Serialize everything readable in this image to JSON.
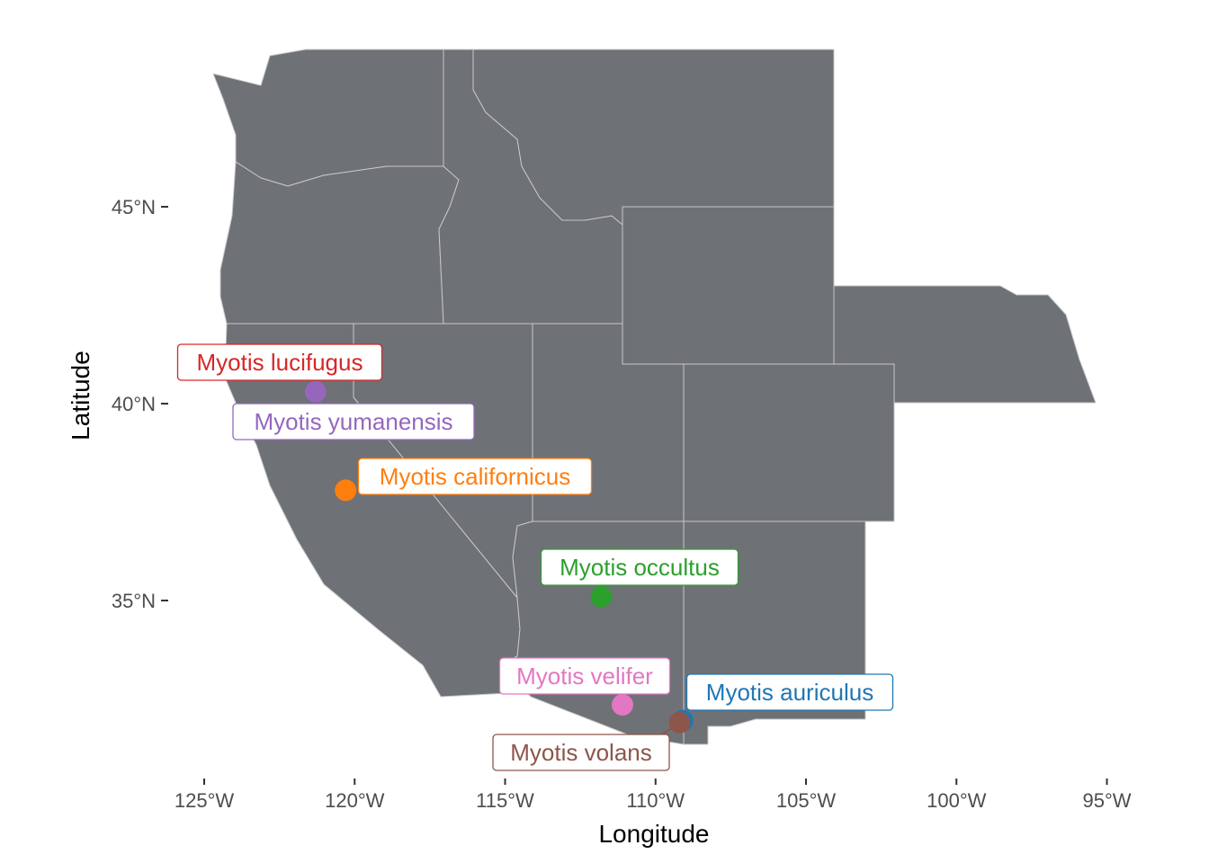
{
  "chart_data": {
    "type": "scatter",
    "title": "",
    "xlabel": "Longitude",
    "ylabel": "Latitude",
    "xlim": [
      -126,
      -94.5
    ],
    "ylim": [
      30.8,
      49
    ],
    "x_ticks": [
      {
        "value": -125,
        "label": "125°W"
      },
      {
        "value": -120,
        "label": "120°W"
      },
      {
        "value": -115,
        "label": "115°W"
      },
      {
        "value": -110,
        "label": "110°W"
      },
      {
        "value": -105,
        "label": "105°W"
      },
      {
        "value": -100,
        "label": "100°W"
      },
      {
        "value": -95,
        "label": "95°W"
      }
    ],
    "y_ticks": [
      {
        "value": 45,
        "label": "45°N"
      },
      {
        "value": 40,
        "label": "40°N"
      },
      {
        "value": 35,
        "label": "35°N"
      }
    ],
    "grid": false,
    "map_fill": "#6e7176",
    "state_border": "#c8c8c8",
    "states": [
      "WA",
      "OR",
      "ID",
      "MT",
      "WY",
      "NE",
      "CA",
      "NV",
      "UT",
      "CO",
      "AZ",
      "NM"
    ],
    "points": [
      {
        "name": "Myotis lucifugus",
        "lon": -121.3,
        "lat": 40.3,
        "color": "#d62728"
      },
      {
        "name": "Myotis yumanensis",
        "lon": -121.3,
        "lat": 40.3,
        "color": "#9467bd"
      },
      {
        "name": "Myotis californicus",
        "lon": -120.3,
        "lat": 37.8,
        "color": "#ff7f0e"
      },
      {
        "name": "Myotis occultus",
        "lon": -111.8,
        "lat": 35.1,
        "color": "#2ca02c"
      },
      {
        "name": "Myotis velifer",
        "lon": -111.1,
        "lat": 32.35,
        "color": "#e377c2"
      },
      {
        "name": "Myotis auriculus",
        "lon": -109.1,
        "lat": 31.95,
        "color": "#1f77b4"
      },
      {
        "name": "Myotis volans",
        "lon": -109.2,
        "lat": 31.9,
        "color": "#8c564b"
      }
    ]
  }
}
